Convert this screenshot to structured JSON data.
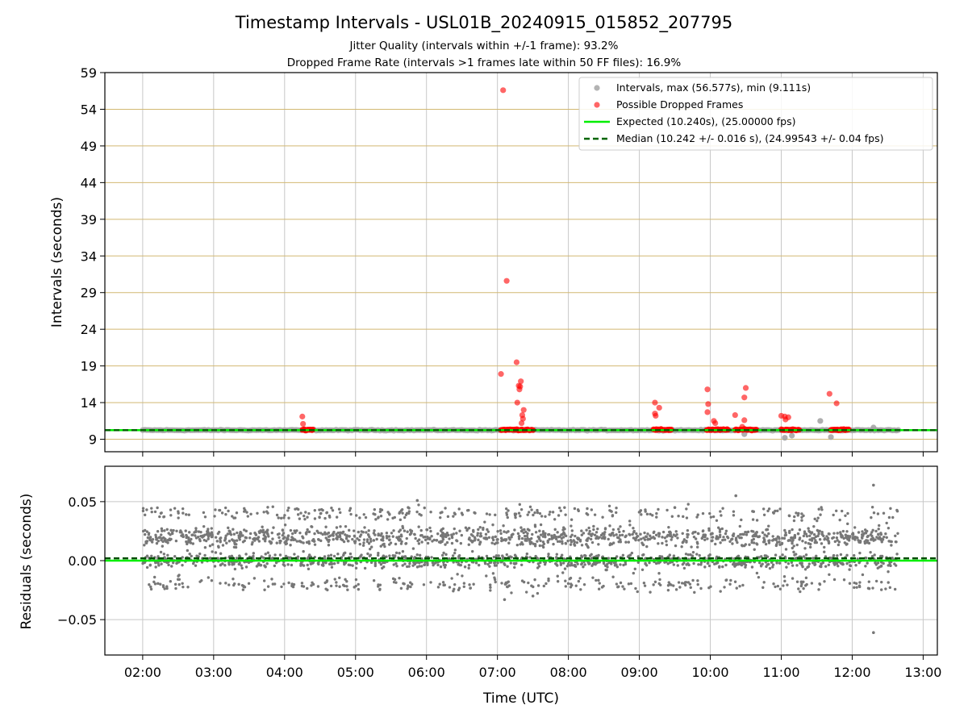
{
  "chart_data": [
    {
      "type": "scatter",
      "title": "Timestamp Intervals - USL01B_20240915_015852_207795",
      "subtitle_lines": [
        "Jitter Quality (intervals within +/-1 frame): 93.2%",
        "Dropped Frame Rate (intervals >1 frames late within 50 FF files): 16.9%"
      ],
      "xlabel": "",
      "ylabel": "Intervals (seconds)",
      "x_unit": "hours UTC",
      "xlim": [
        1.467,
        13.2
      ],
      "ylim": [
        7.3,
        59
      ],
      "yticks": [
        9,
        14,
        19,
        24,
        29,
        34,
        39,
        44,
        49,
        54,
        59
      ],
      "ytick_labels": [
        "9",
        "14",
        "19",
        "24",
        "29",
        "34",
        "39",
        "44",
        "49",
        "54",
        "59"
      ],
      "grid": "on",
      "legend_position": "top-right",
      "legend": [
        "Intervals, max (56.577s), min (9.111s)",
        "Possible Dropped Frames",
        "Expected (10.240s), (25.00000 fps)",
        "Median (10.242 +/- 0.016 s), (24.99543 +/- 0.04 fps)"
      ],
      "colors": {
        "intervals": "#a0a0a0",
        "dropped": "#ff0000",
        "expected": "#00ee00",
        "median": "#006400",
        "hgrid": "#d2b872",
        "vgrid": "#c8c8c8"
      },
      "expected_line": 10.24,
      "median_line": 10.242,
      "baseline_range": {
        "x_start": 2.0,
        "x_end": 12.65,
        "value": 10.24
      },
      "dropped_band_runs": [
        [
          4.25,
          4.4
        ],
        [
          7.05,
          7.5
        ],
        [
          9.2,
          9.45
        ],
        [
          9.95,
          10.25
        ],
        [
          10.35,
          10.65
        ],
        [
          11.0,
          11.25
        ],
        [
          11.7,
          11.95
        ]
      ],
      "series": [
        {
          "name": "Possible Dropped Frames",
          "points": [
            [
              7.08,
              56.6
            ],
            [
              7.13,
              30.6
            ],
            [
              7.05,
              17.9
            ],
            [
              7.27,
              19.5
            ],
            [
              7.3,
              16.3
            ],
            [
              7.31,
              15.8
            ],
            [
              7.33,
              16.9
            ],
            [
              7.32,
              16.2
            ],
            [
              7.28,
              14.0
            ],
            [
              7.37,
              13.0
            ],
            [
              7.35,
              12.3
            ],
            [
              7.36,
              11.8
            ],
            [
              7.34,
              11.2
            ],
            [
              4.25,
              12.1
            ],
            [
              4.26,
              11.1
            ],
            [
              9.22,
              14.0
            ],
            [
              9.28,
              13.3
            ],
            [
              9.22,
              12.5
            ],
            [
              9.23,
              12.2
            ],
            [
              9.96,
              15.8
            ],
            [
              9.97,
              13.8
            ],
            [
              9.96,
              12.7
            ],
            [
              10.05,
              11.5
            ],
            [
              10.07,
              11.2
            ],
            [
              10.35,
              12.3
            ],
            [
              10.45,
              10.7
            ],
            [
              10.48,
              14.7
            ],
            [
              10.5,
              16.0
            ],
            [
              10.48,
              11.6
            ],
            [
              11.0,
              12.2
            ],
            [
              11.05,
              12.1
            ],
            [
              11.1,
              12.0
            ],
            [
              11.06,
              11.7
            ],
            [
              11.68,
              15.2
            ],
            [
              11.78,
              13.9
            ]
          ]
        },
        {
          "name": "Intervals, max (56.577s), min (9.111s)",
          "points": [
            [
              11.05,
              9.2
            ],
            [
              11.15,
              9.5
            ],
            [
              11.7,
              9.3
            ],
            [
              11.55,
              11.5
            ],
            [
              10.48,
              9.7
            ],
            [
              12.3,
              10.6
            ]
          ]
        }
      ]
    },
    {
      "type": "scatter",
      "title": "",
      "xlabel": "Time (UTC)",
      "ylabel": "Residuals (seconds)",
      "xlim": [
        1.467,
        13.2
      ],
      "ylim": [
        -0.08,
        0.08
      ],
      "yticks": [
        -0.05,
        0.0,
        0.05
      ],
      "ytick_labels": [
        "−0.05",
        "0.00",
        "0.05"
      ],
      "xticks": [
        2,
        3,
        4,
        5,
        6,
        7,
        8,
        9,
        10,
        11,
        12,
        13
      ],
      "xtick_labels": [
        "02:00",
        "03:00",
        "04:00",
        "05:00",
        "06:00",
        "07:00",
        "08:00",
        "09:00",
        "10:00",
        "11:00",
        "12:00",
        "13:00"
      ],
      "grid": "on",
      "expected_line": 0.0,
      "median_line": 0.002,
      "residual_clusters": [
        {
          "center": 0.02,
          "spread": 0.004,
          "share": 0.42
        },
        {
          "center": 0.0,
          "spread": 0.003,
          "share": 0.38
        },
        {
          "center": 0.04,
          "spread": 0.003,
          "share": 0.1
        },
        {
          "center": -0.02,
          "spread": 0.003,
          "share": 0.1
        }
      ],
      "outliers": [
        [
          12.3,
          0.064
        ],
        [
          12.3,
          -0.061
        ],
        [
          10.36,
          0.055
        ],
        [
          5.87,
          0.051
        ],
        [
          7.1,
          -0.033
        ],
        [
          7.5,
          -0.03
        ],
        [
          9.5,
          0.045
        ]
      ],
      "x_range": [
        2.0,
        12.65
      ]
    }
  ]
}
